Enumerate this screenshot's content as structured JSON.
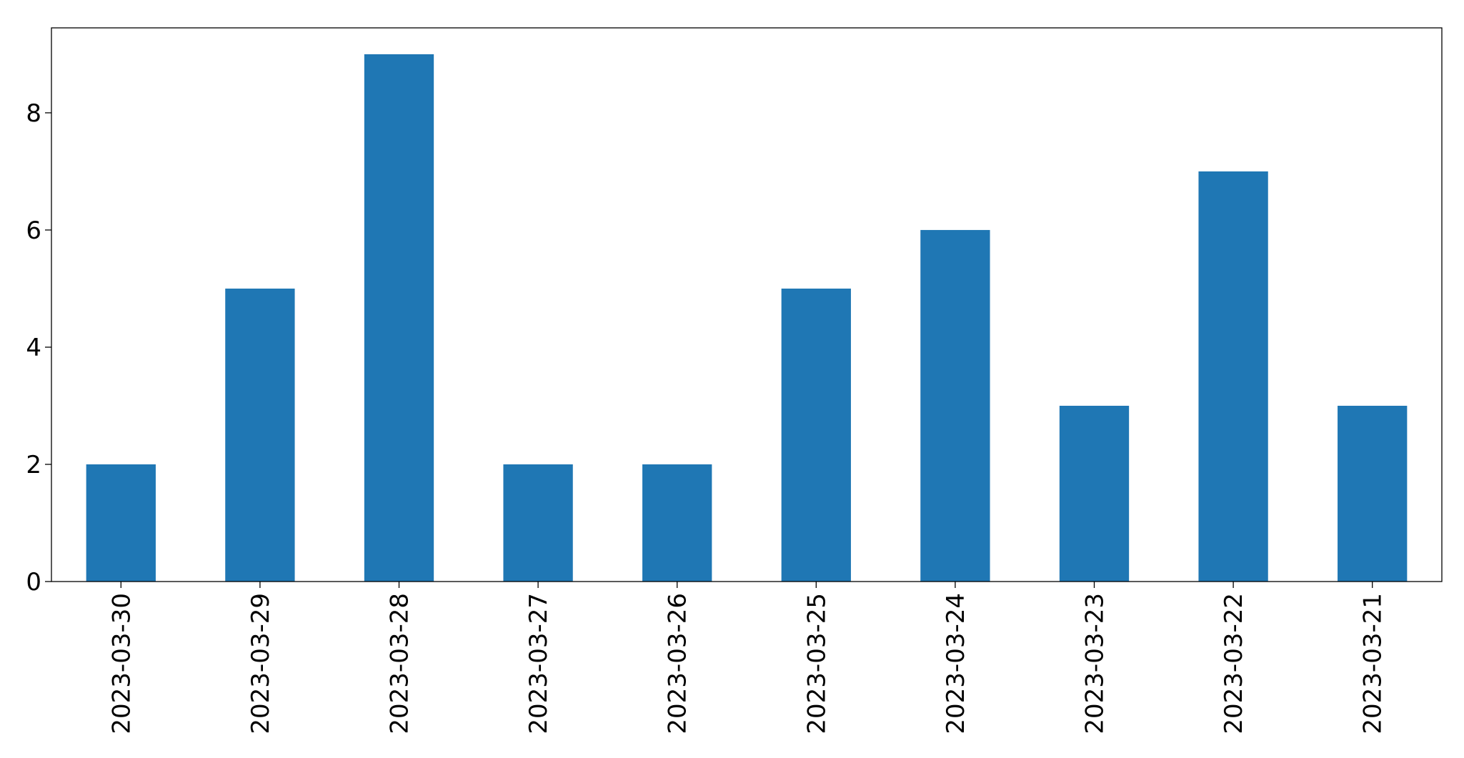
{
  "chart_data": {
    "type": "bar",
    "categories": [
      "2023-03-30",
      "2023-03-29",
      "2023-03-28",
      "2023-03-27",
      "2023-03-26",
      "2023-03-25",
      "2023-03-24",
      "2023-03-23",
      "2023-03-22",
      "2023-03-21"
    ],
    "values": [
      2,
      5,
      9,
      2,
      2,
      5,
      6,
      3,
      7,
      3
    ],
    "color": "#1f77b4",
    "ylim": [
      0,
      9.45
    ],
    "yticks": [
      0,
      2,
      4,
      6,
      8
    ],
    "grid": false
  }
}
